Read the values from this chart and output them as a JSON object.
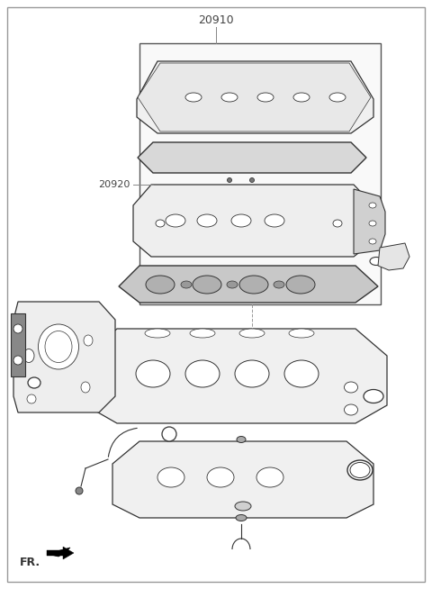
{
  "title": "20910",
  "label_20920": "20920",
  "label_FR": "FR.",
  "bg_color": "#f5f5f5",
  "border_color": "#aaaaaa",
  "line_color": "#333333",
  "fig_width": 4.8,
  "fig_height": 6.54,
  "dpi": 100
}
